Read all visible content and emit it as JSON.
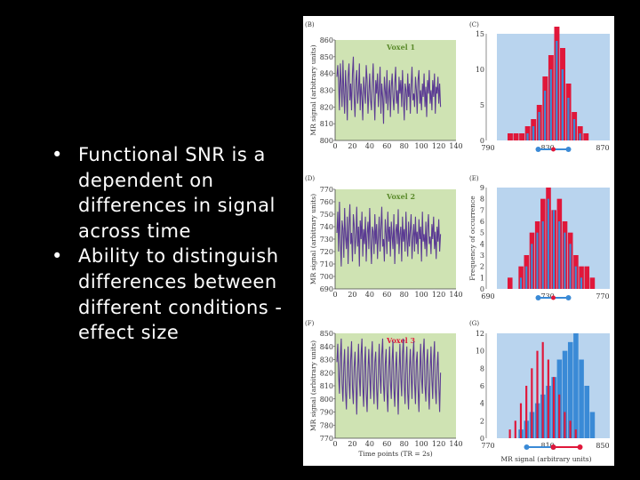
{
  "bullets": [
    "Functional SNR is a dependent on differences in signal across time",
    "Ability to distinguish differences between different conditions - effect size"
  ],
  "figure": {
    "ts_color": "#5b3b93",
    "hist_blue": "#3a8ad6",
    "hist_red": "#e0173a",
    "ts_bg": "#cfe3b3",
    "hist_bg": "#b9d4ee"
  },
  "chart_data": [
    {
      "type": "line",
      "panel": "(B)",
      "title": "Voxel 1",
      "ylabel": "MR signal (arbitrary units)",
      "ylim": [
        800,
        860
      ],
      "yticks": [
        "800",
        "810",
        "820",
        "830",
        "840",
        "850",
        "860"
      ],
      "xlim": [
        0,
        140
      ],
      "xticks": [
        "0",
        "20",
        "40",
        "60",
        "80",
        "100",
        "120",
        "140"
      ],
      "series": [
        {
          "values": [
            838,
            845,
            835,
            818,
            846,
            832,
            820,
            848,
            828,
            816,
            842,
            830,
            812,
            838,
            846,
            824,
            834,
            818,
            840,
            850,
            826,
            814,
            836,
            842,
            822,
            830,
            846,
            818,
            834,
            826,
            812,
            838,
            830,
            822,
            845,
            836,
            816,
            828,
            840,
            824,
            818,
            834,
            846,
            826,
            812,
            836,
            828,
            840,
            820,
            830,
            844,
            816,
            834,
            826,
            810,
            838,
            830,
            822,
            842,
            818,
            828,
            836,
            814,
            832,
            840,
            826,
            818,
            834,
            844,
            822,
            830,
            816,
            838,
            828,
            836,
            820,
            842,
            826,
            812,
            834,
            830,
            818,
            840,
            826,
            834,
            816,
            832,
            844,
            824,
            828,
            820,
            838,
            830,
            816,
            836,
            842,
            822,
            830,
            818,
            834,
            826,
            840,
            820,
            832,
            814,
            836,
            828,
            842,
            822,
            830,
            818,
            836,
            826,
            840,
            816,
            832,
            828,
            838,
            822,
            834,
            820
          ]
        }
      ]
    },
    {
      "type": "bar",
      "panel": "(C)",
      "ylim": [
        0,
        15
      ],
      "yticks": [
        "0",
        "5",
        "10",
        "15"
      ],
      "xticks": [
        "790",
        "830",
        "870"
      ],
      "series": [
        {
          "values": [
            1,
            1,
            1,
            2,
            3,
            5,
            9,
            12,
            16,
            13,
            8,
            4,
            2,
            1,
            0,
            0
          ]
        },
        {
          "values": [
            0,
            0,
            0,
            1,
            2,
            4,
            7,
            10,
            14,
            10,
            6,
            3,
            1,
            0,
            0,
            0
          ]
        }
      ]
    },
    {
      "type": "line",
      "panel": "(D)",
      "title": "Voxel 2",
      "ylabel": "MR signal (arbitrary units)",
      "ylim": [
        690,
        770
      ],
      "yticks": [
        "690",
        "700",
        "710",
        "720",
        "730",
        "740",
        "750",
        "760",
        "770"
      ],
      "xlim": [
        0,
        140
      ],
      "xticks": [
        "0",
        "20",
        "40",
        "60",
        "80",
        "100",
        "120",
        "140"
      ],
      "series": [
        {
          "values": [
            735,
            752,
            720,
            760,
            728,
            708,
            745,
            738,
            715,
            755,
            732,
            722,
            748,
            710,
            740,
            758,
            726,
            735,
            712,
            750,
            742,
            718,
            732,
            756,
            724,
            740,
            708,
            745,
            730,
            752,
            716,
            738,
            726,
            748,
            712,
            734,
            744,
            722,
            755,
            728,
            710,
            740,
            736,
            718,
            750,
            726,
            742,
            714,
            732,
            748,
            720,
            738,
            756,
            724,
            730,
            712,
            746,
            734,
            718,
            752,
            728,
            740,
            716,
            744,
            732,
            722,
            750,
            710,
            736,
            742,
            726,
            754,
            718,
            734,
            740,
            712,
            748,
            728,
            738,
            720,
            752,
            730,
            716,
            744,
            724,
            738,
            750,
            714,
            732,
            742,
            720,
            748,
            726,
            736,
            718,
            746,
            730,
            740,
            712,
            752,
            728,
            734,
            722,
            744,
            716,
            738,
            750,
            726,
            732,
            718,
            742,
            730,
            748,
            722,
            736,
            714,
            740,
            728,
            746,
            720,
            734
          ]
        }
      ]
    },
    {
      "type": "bar",
      "panel": "(E)",
      "ylabel": "Frequency of occurrence",
      "ylim": [
        0,
        9
      ],
      "yticks": [
        "0",
        "1",
        "2",
        "3",
        "4",
        "5",
        "6",
        "7",
        "8",
        "9"
      ],
      "xticks": [
        "690",
        "730",
        "770"
      ],
      "series": [
        {
          "values": [
            1,
            0,
            2,
            3,
            5,
            6,
            8,
            9,
            7,
            8,
            6,
            5,
            3,
            2,
            2,
            1,
            0
          ]
        },
        {
          "values": [
            0,
            0,
            1,
            2,
            4,
            5,
            6,
            8,
            7,
            6,
            5,
            4,
            2,
            1,
            0,
            0,
            0
          ]
        }
      ]
    },
    {
      "type": "line",
      "panel": "(F)",
      "title": "Voxel 3",
      "xlabel": "Time points (TR = 2s)",
      "ylabel": "MR signal (arbitrary units)",
      "ylim": [
        770,
        850
      ],
      "yticks": [
        "770",
        "780",
        "790",
        "800",
        "810",
        "820",
        "830",
        "840",
        "850"
      ],
      "xlim": [
        0,
        140
      ],
      "xticks": [
        "0",
        "20",
        "40",
        "60",
        "80",
        "100",
        "120",
        "140"
      ],
      "series": [
        {
          "values": [
            828,
            842,
            818,
            804,
            832,
            846,
            812,
            798,
            826,
            838,
            806,
            792,
            822,
            840,
            814,
            800,
            830,
            844,
            808,
            796,
            824,
            836,
            812,
            788,
            820,
            842,
            816,
            802,
            834,
            846,
            810,
            794,
            826,
            840,
            804,
            790,
            822,
            838,
            818,
            800,
            832,
            844,
            812,
            796,
            828,
            836,
            808,
            792,
            820,
            842,
            816,
            804,
            834,
            846,
            810,
            798,
            826,
            838,
            806,
            790,
            822,
            840,
            814,
            800,
            830,
            844,
            808,
            794,
            824,
            836,
            812,
            788,
            820,
            842,
            816,
            802,
            834,
            846,
            810,
            796,
            826,
            840,
            804,
            792,
            822,
            838,
            818,
            800,
            832,
            844,
            812,
            796,
            828,
            836,
            808,
            790,
            820,
            842,
            816,
            804,
            834,
            846,
            810,
            798,
            826,
            838,
            806,
            792,
            822,
            840,
            814,
            800,
            830,
            844,
            808,
            796,
            824,
            836,
            812,
            790,
            820
          ]
        }
      ]
    },
    {
      "type": "bar",
      "panel": "(G)",
      "xlabel": "MR signal (arbitrary units)",
      "ylim": [
        0,
        12
      ],
      "yticks": [
        "0",
        "2",
        "4",
        "6",
        "8",
        "10",
        "12"
      ],
      "xticks": [
        "770",
        "810",
        "850"
      ],
      "series": [
        {
          "values": [
            1,
            2,
            4,
            6,
            8,
            10,
            11,
            9,
            7,
            5,
            3,
            2,
            1,
            0,
            0,
            0,
            0
          ]
        },
        {
          "values": [
            0,
            0,
            1,
            2,
            3,
            4,
            5,
            6,
            7,
            9,
            10,
            11,
            12,
            9,
            6,
            3,
            0
          ]
        }
      ]
    }
  ]
}
